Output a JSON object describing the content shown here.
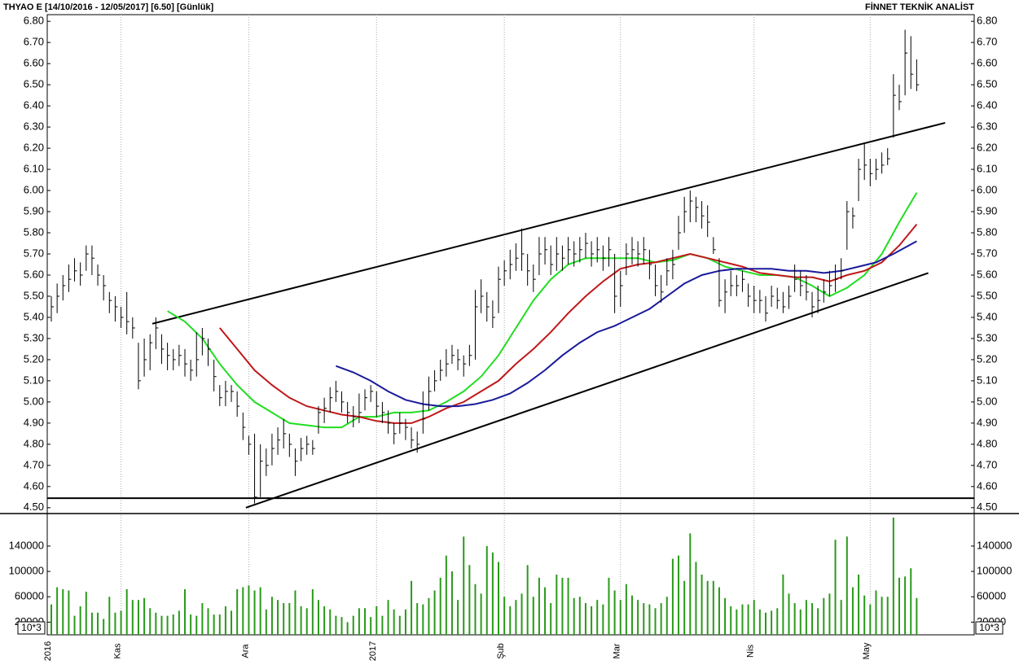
{
  "chart_data": [
    {
      "type": "ohlc",
      "title": "THYAO E  [14/10/2016 - 12/05/2017]  [6.50]  [Günlük]",
      "source": "FİNNET TEKNİK ANALİST",
      "ylim": [
        4.48,
        6.82
      ],
      "yticks": [
        {
          "value": 4.5,
          "label": "4.50"
        },
        {
          "value": 4.6,
          "label": "4.60"
        },
        {
          "value": 4.7,
          "label": "4.70"
        },
        {
          "value": 4.8,
          "label": "4.80"
        },
        {
          "value": 4.9,
          "label": "4.90"
        },
        {
          "value": 5.0,
          "label": "5.00"
        },
        {
          "value": 5.1,
          "label": "5.10"
        },
        {
          "value": 5.2,
          "label": "5.20"
        },
        {
          "value": 5.3,
          "label": "5.30"
        },
        {
          "value": 5.4,
          "label": "5.40"
        },
        {
          "value": 5.5,
          "label": "5.50"
        },
        {
          "value": 5.6,
          "label": "5.60"
        },
        {
          "value": 5.7,
          "label": "5.70"
        },
        {
          "value": 5.8,
          "label": "5.80"
        },
        {
          "value": 5.9,
          "label": "5.90"
        },
        {
          "value": 6.0,
          "label": "6.00"
        },
        {
          "value": 6.1,
          "label": "6.10"
        },
        {
          "value": 6.2,
          "label": "6.20"
        },
        {
          "value": 6.3,
          "label": "6.30"
        },
        {
          "value": 6.4,
          "label": "6.40"
        },
        {
          "value": 6.5,
          "label": "6.50"
        },
        {
          "value": 6.6,
          "label": "6.60"
        },
        {
          "value": 6.7,
          "label": "6.70"
        },
        {
          "value": 6.8,
          "label": "6.80"
        }
      ],
      "bar_color": "#000000",
      "high": [
        5.5,
        5.56,
        5.6,
        5.65,
        5.68,
        5.66,
        5.74,
        5.74,
        5.65,
        5.6,
        5.52,
        5.5,
        5.45,
        5.52,
        5.4,
        5.28,
        5.3,
        5.32,
        5.4,
        5.32,
        5.28,
        5.25,
        5.27,
        5.25,
        5.2,
        5.33,
        5.35,
        5.3,
        5.2,
        5.08,
        5.1,
        5.08,
        5.05,
        4.95,
        4.84,
        4.85,
        4.8,
        4.78,
        4.85,
        4.88,
        4.92,
        4.85,
        4.78,
        4.83,
        4.84,
        4.82,
        4.98,
        5.02,
        5.07,
        5.1,
        5.05,
        5.0,
        4.98,
        5.04,
        5.06,
        5.08,
        5.05,
        5.0,
        4.96,
        4.9,
        4.95,
        4.92,
        4.88,
        4.86,
        5.05,
        5.12,
        5.15,
        5.2,
        5.25,
        5.27,
        5.25,
        5.22,
        5.27,
        5.53,
        5.58,
        5.52,
        5.48,
        5.64,
        5.67,
        5.72,
        5.75,
        5.82,
        5.7,
        5.65,
        5.78,
        5.78,
        5.74,
        5.78,
        5.74,
        5.78,
        5.76,
        5.78,
        5.8,
        5.76,
        5.78,
        5.74,
        5.78,
        5.7,
        5.62,
        5.75,
        5.78,
        5.76,
        5.78,
        5.72,
        5.65,
        5.6,
        5.68,
        5.72,
        5.88,
        5.97,
        6.0,
        5.97,
        5.95,
        5.93,
        5.78,
        5.68,
        5.58,
        5.62,
        5.6,
        5.62,
        5.56,
        5.55,
        5.53,
        5.5,
        5.55,
        5.54,
        5.52,
        5.55,
        5.65,
        5.62,
        5.6,
        5.52,
        5.55,
        5.58,
        5.62,
        5.65,
        5.68,
        5.95,
        5.92,
        6.15,
        6.22,
        6.15,
        6.15,
        6.18,
        6.2,
        6.55,
        6.5,
        6.76,
        6.73,
        6.62
      ],
      "low": [
        5.38,
        5.42,
        5.48,
        5.52,
        5.57,
        5.55,
        5.62,
        5.6,
        5.55,
        5.48,
        5.42,
        5.38,
        5.35,
        5.32,
        5.3,
        5.06,
        5.12,
        5.15,
        5.25,
        5.18,
        5.15,
        5.15,
        5.17,
        5.12,
        5.1,
        5.12,
        5.22,
        5.17,
        5.05,
        4.98,
        4.98,
        5.0,
        4.93,
        4.82,
        4.75,
        4.52,
        4.55,
        4.65,
        4.7,
        4.75,
        4.78,
        4.74,
        4.65,
        4.72,
        4.75,
        4.75,
        4.85,
        4.9,
        4.95,
        5.0,
        4.95,
        4.9,
        4.88,
        4.9,
        4.96,
        5.0,
        4.93,
        4.9,
        4.85,
        4.8,
        4.85,
        4.82,
        4.78,
        4.76,
        4.85,
        4.96,
        5.05,
        5.1,
        5.12,
        5.18,
        5.15,
        5.12,
        5.17,
        5.2,
        5.42,
        5.38,
        5.35,
        5.42,
        5.55,
        5.58,
        5.62,
        5.62,
        5.55,
        5.52,
        5.6,
        5.65,
        5.6,
        5.62,
        5.62,
        5.65,
        5.64,
        5.66,
        5.68,
        5.64,
        5.66,
        5.62,
        5.64,
        5.42,
        5.45,
        5.6,
        5.65,
        5.64,
        5.65,
        5.58,
        5.5,
        5.47,
        5.55,
        5.58,
        5.72,
        5.8,
        5.85,
        5.85,
        5.82,
        5.78,
        5.7,
        5.45,
        5.42,
        5.5,
        5.5,
        5.52,
        5.45,
        5.42,
        5.42,
        5.38,
        5.45,
        5.44,
        5.42,
        5.44,
        5.52,
        5.5,
        5.48,
        5.4,
        5.42,
        5.47,
        5.5,
        5.52,
        5.58,
        5.72,
        5.82,
        5.95,
        6.05,
        6.02,
        6.05,
        6.08,
        6.12,
        6.25,
        6.38,
        6.45,
        6.48,
        6.47
      ],
      "close": [
        5.45,
        5.5,
        5.55,
        5.58,
        5.62,
        5.6,
        5.7,
        5.68,
        5.6,
        5.55,
        5.48,
        5.45,
        5.4,
        5.38,
        5.35,
        5.1,
        5.2,
        5.28,
        5.35,
        5.25,
        5.22,
        5.2,
        5.22,
        5.18,
        5.15,
        5.2,
        5.3,
        5.25,
        5.12,
        5.02,
        5.05,
        5.05,
        4.98,
        4.88,
        4.8,
        4.55,
        4.72,
        4.7,
        4.78,
        4.82,
        4.85,
        4.8,
        4.72,
        4.78,
        4.8,
        4.78,
        4.95,
        4.97,
        5.02,
        5.05,
        5.0,
        4.95,
        4.93,
        4.95,
        5.02,
        5.05,
        4.98,
        4.95,
        4.9,
        4.85,
        4.9,
        4.88,
        4.82,
        4.8,
        4.92,
        5.05,
        5.1,
        5.15,
        5.18,
        5.22,
        5.2,
        5.18,
        5.22,
        5.45,
        5.5,
        5.45,
        5.4,
        5.58,
        5.62,
        5.65,
        5.68,
        5.7,
        5.62,
        5.58,
        5.7,
        5.72,
        5.65,
        5.7,
        5.68,
        5.72,
        5.7,
        5.72,
        5.75,
        5.7,
        5.72,
        5.68,
        5.72,
        5.5,
        5.55,
        5.7,
        5.72,
        5.7,
        5.72,
        5.65,
        5.55,
        5.52,
        5.62,
        5.65,
        5.8,
        5.9,
        5.95,
        5.92,
        5.88,
        5.85,
        5.72,
        5.48,
        5.52,
        5.55,
        5.55,
        5.58,
        5.5,
        5.48,
        5.48,
        5.42,
        5.5,
        5.48,
        5.45,
        5.5,
        5.58,
        5.55,
        5.52,
        5.45,
        5.48,
        5.52,
        5.55,
        5.58,
        5.62,
        5.9,
        5.88,
        6.1,
        6.12,
        6.08,
        6.1,
        6.12,
        6.15,
        6.45,
        6.42,
        6.65,
        6.55,
        6.5
      ],
      "series": [
        {
          "color": "#22dd22",
          "x": [
            20,
            23,
            26,
            29,
            32,
            35,
            38,
            41,
            44,
            47,
            50,
            53,
            56,
            59,
            62,
            65,
            68,
            71,
            74,
            77,
            80,
            83,
            86,
            89,
            92,
            95,
            98,
            101,
            104,
            107,
            110,
            113,
            116,
            119,
            122,
            125,
            128,
            131,
            134,
            137,
            140,
            143,
            146,
            149
          ],
          "values": [
            5.43,
            5.38,
            5.3,
            5.18,
            5.08,
            5.0,
            4.95,
            4.9,
            4.89,
            4.88,
            4.88,
            4.93,
            4.93,
            4.95,
            4.95,
            4.96,
            5.0,
            5.05,
            5.12,
            5.22,
            5.35,
            5.48,
            5.58,
            5.65,
            5.68,
            5.68,
            5.68,
            5.68,
            5.66,
            5.67,
            5.7,
            5.68,
            5.64,
            5.62,
            5.6,
            5.6,
            5.59,
            5.55,
            5.5,
            5.54,
            5.6,
            5.7,
            5.85,
            5.99
          ]
        },
        {
          "color": "#c0181a",
          "x": [
            29,
            32,
            35,
            38,
            41,
            44,
            47,
            50,
            53,
            56,
            59,
            62,
            65,
            68,
            71,
            74,
            77,
            80,
            83,
            86,
            89,
            92,
            95,
            98,
            101,
            104,
            107,
            110,
            113,
            116,
            119,
            122,
            125,
            128,
            131,
            134,
            137,
            140,
            143,
            146,
            149
          ],
          "values": [
            5.35,
            5.25,
            5.15,
            5.08,
            5.02,
            4.98,
            4.96,
            4.94,
            4.93,
            4.91,
            4.9,
            4.9,
            4.93,
            4.97,
            5.0,
            5.05,
            5.1,
            5.18,
            5.25,
            5.33,
            5.42,
            5.5,
            5.57,
            5.63,
            5.65,
            5.66,
            5.68,
            5.7,
            5.68,
            5.66,
            5.64,
            5.61,
            5.6,
            5.59,
            5.59,
            5.57,
            5.6,
            5.62,
            5.66,
            5.74,
            5.84
          ]
        },
        {
          "color": "#1a1a9a",
          "x": [
            49,
            52,
            55,
            58,
            61,
            64,
            67,
            70,
            73,
            76,
            79,
            82,
            85,
            88,
            91,
            94,
            97,
            100,
            103,
            106,
            109,
            112,
            115,
            118,
            121,
            124,
            127,
            130,
            133,
            136,
            139,
            142,
            145,
            149
          ],
          "values": [
            5.17,
            5.14,
            5.1,
            5.05,
            5.01,
            4.99,
            4.98,
            4.98,
            4.99,
            5.01,
            5.04,
            5.09,
            5.15,
            5.22,
            5.28,
            5.33,
            5.36,
            5.4,
            5.44,
            5.5,
            5.56,
            5.6,
            5.62,
            5.63,
            5.63,
            5.63,
            5.62,
            5.62,
            5.61,
            5.62,
            5.64,
            5.66,
            5.7,
            5.76
          ]
        }
      ],
      "trend_lines": [
        {
          "x": [
            17.4,
            153.9
          ],
          "values": [
            5.37,
            6.32
          ]
        },
        {
          "x": [
            33.5,
            151
          ],
          "values": [
            4.5,
            5.61
          ]
        }
      ],
      "support_level": 4.545
    },
    {
      "type": "bar",
      "unit_label": "10*3",
      "color": "#2a9a1a",
      "ylim": [
        0,
        190000
      ],
      "yticks": [
        20000,
        60000,
        100000,
        140000
      ],
      "categories": [
        "2016",
        null,
        null,
        null,
        null,
        null,
        null,
        null,
        null,
        null,
        null,
        null,
        "Kas",
        null,
        null,
        null,
        null,
        null,
        null,
        null,
        null,
        null,
        null,
        null,
        null,
        null,
        null,
        null,
        null,
        null,
        null,
        null,
        null,
        null,
        "Ara",
        null,
        null,
        null,
        null,
        null,
        null,
        null,
        null,
        null,
        null,
        null,
        null,
        null,
        null,
        null,
        null,
        null,
        null,
        null,
        null,
        null,
        "2017",
        null,
        null,
        null,
        null,
        null,
        null,
        null,
        null,
        null,
        null,
        null,
        null,
        null,
        null,
        null,
        null,
        null,
        null,
        null,
        null,
        null,
        "Şub",
        null,
        null,
        null,
        null,
        null,
        null,
        null,
        null,
        null,
        null,
        null,
        null,
        null,
        null,
        null,
        null,
        null,
        null,
        null,
        "Mar",
        null,
        null,
        null,
        null,
        null,
        null,
        null,
        null,
        null,
        null,
        null,
        null,
        null,
        null,
        null,
        null,
        null,
        null,
        null,
        null,
        null,
        null,
        "Nis",
        null,
        null,
        null,
        null,
        null,
        null,
        null,
        null,
        null,
        null,
        null,
        null,
        null,
        null,
        null,
        null,
        null,
        null,
        null,
        "May",
        null,
        null,
        null,
        null,
        null,
        null,
        null,
        null
      ],
      "values": [
        48000,
        75000,
        72000,
        70000,
        30000,
        45000,
        68000,
        35000,
        35000,
        25000,
        60000,
        35000,
        38000,
        72000,
        55000,
        55000,
        58000,
        42000,
        35000,
        30000,
        30000,
        32000,
        38000,
        72000,
        32000,
        30000,
        50000,
        42000,
        32000,
        32000,
        45000,
        38000,
        72000,
        75000,
        78000,
        70000,
        75000,
        40000,
        60000,
        55000,
        50000,
        50000,
        70000,
        45000,
        42000,
        72000,
        55000,
        45000,
        40000,
        30000,
        28000,
        20000,
        30000,
        42000,
        42000,
        28000,
        45000,
        30000,
        55000,
        40000,
        30000,
        40000,
        85000,
        50000,
        48000,
        58000,
        70000,
        90000,
        125000,
        100000,
        55000,
        155000,
        110000,
        80000,
        65000,
        140000,
        130000,
        115000,
        60000,
        45000,
        55000,
        65000,
        110000,
        60000,
        90000,
        75000,
        50000,
        95000,
        90000,
        90000,
        58000,
        60000,
        50000,
        45000,
        55000,
        48000,
        90000,
        70000,
        55000,
        80000,
        62000,
        55000,
        50000,
        48000,
        42000,
        50000,
        60000,
        120000,
        125000,
        85000,
        160000,
        115000,
        95000,
        85000,
        85000,
        75000,
        58000,
        45000,
        40000,
        48000,
        48000,
        55000,
        40000,
        35000,
        38000,
        42000,
        95000,
        65000,
        50000,
        40000,
        55000,
        50000,
        42000,
        58000,
        65000,
        150000,
        55000,
        155000,
        75000,
        95000,
        62000,
        48000,
        70000,
        60000,
        60000,
        185000,
        90000,
        92000,
        105000,
        58000
      ]
    }
  ]
}
